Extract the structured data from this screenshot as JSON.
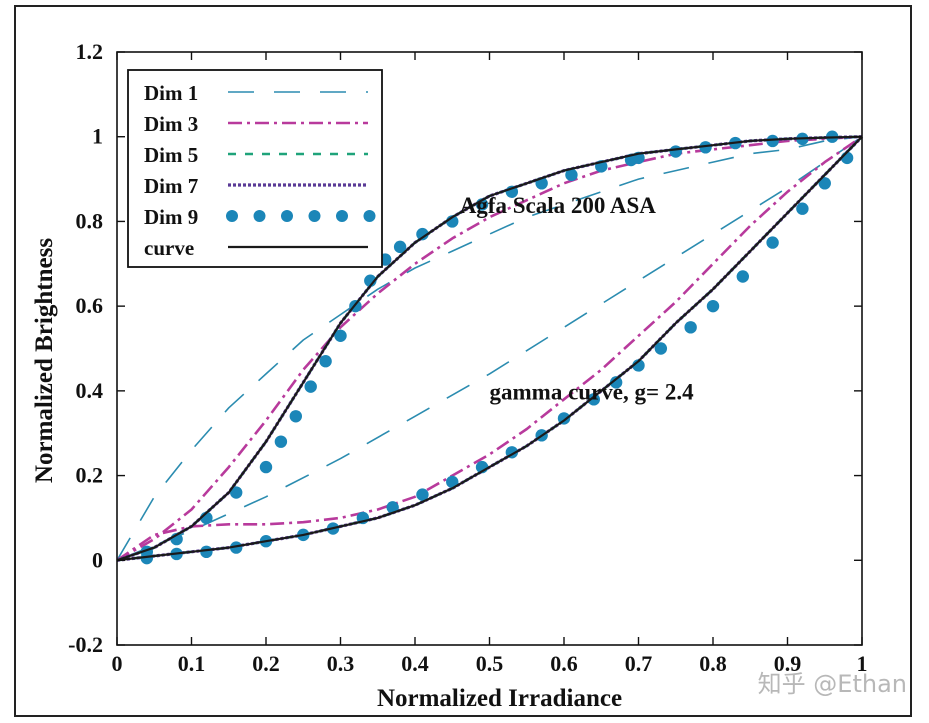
{
  "chart_data": {
    "type": "line",
    "xlabel": "Normalized Irradiance",
    "ylabel": "Normalized Brightness",
    "xlim": [
      0,
      1
    ],
    "ylim": [
      -0.2,
      1.2
    ],
    "x_ticks": [
      0,
      0.1,
      0.2,
      0.3,
      0.4,
      0.5,
      0.6,
      0.7,
      0.8,
      0.9,
      1
    ],
    "y_ticks": [
      -0.2,
      0,
      0.2,
      0.4,
      0.6,
      0.8,
      1,
      1.2
    ],
    "x_tick_labels": [
      "0",
      "0.1",
      "0.2",
      "0.3",
      "0.4",
      "0.5",
      "0.6",
      "0.7",
      "0.8",
      "0.9",
      "1"
    ],
    "y_tick_labels": [
      "-0.2",
      "0",
      "0.2",
      "0.4",
      "0.6",
      "0.8",
      "1",
      "1.2"
    ],
    "legend_position": "top-left",
    "annotations": [
      {
        "text": "Agfa Scala 200 ASA",
        "x": 0.46,
        "y": 0.82
      },
      {
        "text": "gamma curve, g= 2.4",
        "x": 0.5,
        "y": 0.38
      }
    ],
    "series": [
      {
        "name": "Dim 1",
        "color": "#2b8cb0",
        "style": "long-dash",
        "groups": [
          {
            "x": [
              0,
              0.05,
              0.1,
              0.15,
              0.2,
              0.25,
              0.3,
              0.35,
              0.4,
              0.45,
              0.5,
              0.55,
              0.6,
              0.65,
              0.7,
              0.75,
              0.8,
              0.85,
              0.9,
              0.95,
              1
            ],
            "y": [
              0,
              0.15,
              0.26,
              0.36,
              0.44,
              0.52,
              0.58,
              0.64,
              0.69,
              0.73,
              0.77,
              0.81,
              0.84,
              0.87,
              0.9,
              0.92,
              0.94,
              0.96,
              0.97,
              0.99,
              1
            ]
          },
          {
            "x": [
              0,
              0.1,
              0.2,
              0.3,
              0.4,
              0.5,
              0.6,
              0.7,
              0.8,
              0.9,
              1
            ],
            "y": [
              0,
              0.07,
              0.15,
              0.24,
              0.34,
              0.44,
              0.55,
              0.66,
              0.77,
              0.88,
              1
            ]
          }
        ]
      },
      {
        "name": "Dim 3",
        "color": "#b83a9c",
        "style": "dash-dot",
        "groups": [
          {
            "x": [
              0,
              0.05,
              0.1,
              0.15,
              0.2,
              0.25,
              0.3,
              0.35,
              0.4,
              0.45,
              0.5,
              0.55,
              0.6,
              0.65,
              0.7,
              0.75,
              0.8,
              0.85,
              0.9,
              0.95,
              1
            ],
            "y": [
              0,
              0.05,
              0.12,
              0.22,
              0.33,
              0.45,
              0.55,
              0.63,
              0.7,
              0.76,
              0.81,
              0.85,
              0.89,
              0.92,
              0.94,
              0.96,
              0.97,
              0.98,
              0.99,
              0.995,
              1
            ]
          },
          {
            "x": [
              0,
              0.05,
              0.1,
              0.15,
              0.2,
              0.25,
              0.3,
              0.35,
              0.4,
              0.45,
              0.5,
              0.55,
              0.6,
              0.65,
              0.7,
              0.75,
              0.8,
              0.85,
              0.9,
              0.95,
              1
            ],
            "y": [
              0,
              0.06,
              0.08,
              0.085,
              0.085,
              0.09,
              0.1,
              0.12,
              0.15,
              0.2,
              0.25,
              0.31,
              0.38,
              0.45,
              0.53,
              0.61,
              0.7,
              0.79,
              0.87,
              0.94,
              1
            ]
          }
        ]
      },
      {
        "name": "Dim 5",
        "color": "#1fa37a",
        "style": "short-dash",
        "groups": [
          {
            "x": [
              0,
              0.05,
              0.1,
              0.15,
              0.2,
              0.25,
              0.3,
              0.35,
              0.4,
              0.45,
              0.5,
              0.55,
              0.6,
              0.65,
              0.7,
              0.75,
              0.8,
              0.85,
              0.9,
              0.95,
              1
            ],
            "y": [
              0,
              0.03,
              0.08,
              0.16,
              0.28,
              0.42,
              0.56,
              0.67,
              0.75,
              0.81,
              0.86,
              0.89,
              0.92,
              0.94,
              0.96,
              0.97,
              0.98,
              0.99,
              0.995,
              0.998,
              1
            ]
          },
          {
            "x": [
              0,
              0.05,
              0.1,
              0.15,
              0.2,
              0.25,
              0.3,
              0.35,
              0.4,
              0.45,
              0.5,
              0.55,
              0.6,
              0.65,
              0.7,
              0.75,
              0.8,
              0.85,
              0.9,
              0.95,
              1
            ],
            "y": [
              0,
              0.01,
              0.02,
              0.03,
              0.045,
              0.06,
              0.08,
              0.1,
              0.13,
              0.17,
              0.22,
              0.27,
              0.33,
              0.4,
              0.47,
              0.56,
              0.64,
              0.73,
              0.82,
              0.91,
              1
            ]
          }
        ]
      },
      {
        "name": "Dim 7",
        "color": "#5a3a96",
        "style": "dotted",
        "groups": [
          {
            "x": [
              0,
              0.05,
              0.1,
              0.15,
              0.2,
              0.25,
              0.3,
              0.35,
              0.4,
              0.45,
              0.5,
              0.55,
              0.6,
              0.65,
              0.7,
              0.75,
              0.8,
              0.85,
              0.9,
              0.95,
              1
            ],
            "y": [
              0,
              0.03,
              0.08,
              0.16,
              0.28,
              0.42,
              0.56,
              0.67,
              0.75,
              0.81,
              0.86,
              0.89,
              0.92,
              0.94,
              0.96,
              0.97,
              0.98,
              0.99,
              0.995,
              0.998,
              1
            ]
          },
          {
            "x": [
              0,
              0.05,
              0.1,
              0.15,
              0.2,
              0.25,
              0.3,
              0.35,
              0.4,
              0.45,
              0.5,
              0.55,
              0.6,
              0.65,
              0.7,
              0.75,
              0.8,
              0.85,
              0.9,
              0.95,
              1
            ],
            "y": [
              0,
              0.01,
              0.02,
              0.03,
              0.045,
              0.06,
              0.08,
              0.1,
              0.13,
              0.17,
              0.22,
              0.27,
              0.33,
              0.4,
              0.47,
              0.56,
              0.64,
              0.73,
              0.82,
              0.91,
              1
            ]
          }
        ]
      },
      {
        "name": "Dim 9",
        "color": "#1b86b8",
        "style": "markers",
        "groups": [
          {
            "x": [
              0.04,
              0.08,
              0.12,
              0.16,
              0.2,
              0.22,
              0.24,
              0.26,
              0.28,
              0.3,
              0.32,
              0.34,
              0.36,
              0.38,
              0.41,
              0.45,
              0.49,
              0.53,
              0.57,
              0.61,
              0.65,
              0.69,
              0.7,
              0.75,
              0.79,
              0.83,
              0.88,
              0.92,
              0.96
            ],
            "y": [
              0.02,
              0.05,
              0.1,
              0.16,
              0.22,
              0.28,
              0.34,
              0.41,
              0.47,
              0.53,
              0.6,
              0.66,
              0.71,
              0.74,
              0.77,
              0.8,
              0.84,
              0.87,
              0.89,
              0.91,
              0.93,
              0.945,
              0.95,
              0.965,
              0.975,
              0.985,
              0.99,
              0.995,
              1.0
            ]
          },
          {
            "x": [
              0.04,
              0.08,
              0.12,
              0.16,
              0.2,
              0.25,
              0.29,
              0.33,
              0.37,
              0.41,
              0.45,
              0.49,
              0.53,
              0.57,
              0.6,
              0.64,
              0.67,
              0.7,
              0.73,
              0.77,
              0.8,
              0.84,
              0.88,
              0.92,
              0.95,
              0.98
            ],
            "y": [
              0.005,
              0.015,
              0.02,
              0.03,
              0.045,
              0.06,
              0.075,
              0.1,
              0.125,
              0.155,
              0.185,
              0.22,
              0.255,
              0.295,
              0.335,
              0.38,
              0.42,
              0.46,
              0.5,
              0.55,
              0.6,
              0.67,
              0.75,
              0.83,
              0.89,
              0.95
            ]
          }
        ]
      },
      {
        "name": "curve",
        "color": "#1a1a1a",
        "style": "solid",
        "groups": [
          {
            "x": [
              0,
              0.05,
              0.1,
              0.15,
              0.2,
              0.25,
              0.3,
              0.35,
              0.4,
              0.45,
              0.5,
              0.55,
              0.6,
              0.65,
              0.7,
              0.75,
              0.8,
              0.85,
              0.9,
              0.95,
              1
            ],
            "y": [
              0,
              0.03,
              0.08,
              0.16,
              0.28,
              0.42,
              0.56,
              0.67,
              0.75,
              0.81,
              0.86,
              0.89,
              0.92,
              0.94,
              0.96,
              0.97,
              0.98,
              0.99,
              0.995,
              0.998,
              1
            ]
          },
          {
            "x": [
              0,
              0.05,
              0.1,
              0.15,
              0.2,
              0.25,
              0.3,
              0.35,
              0.4,
              0.45,
              0.5,
              0.55,
              0.6,
              0.65,
              0.7,
              0.75,
              0.8,
              0.85,
              0.9,
              0.95,
              1
            ],
            "y": [
              0,
              0.01,
              0.02,
              0.03,
              0.045,
              0.06,
              0.08,
              0.1,
              0.13,
              0.17,
              0.22,
              0.27,
              0.33,
              0.4,
              0.47,
              0.56,
              0.64,
              0.73,
              0.82,
              0.91,
              1
            ]
          }
        ]
      }
    ]
  },
  "watermark": "知乎 @Ethan"
}
